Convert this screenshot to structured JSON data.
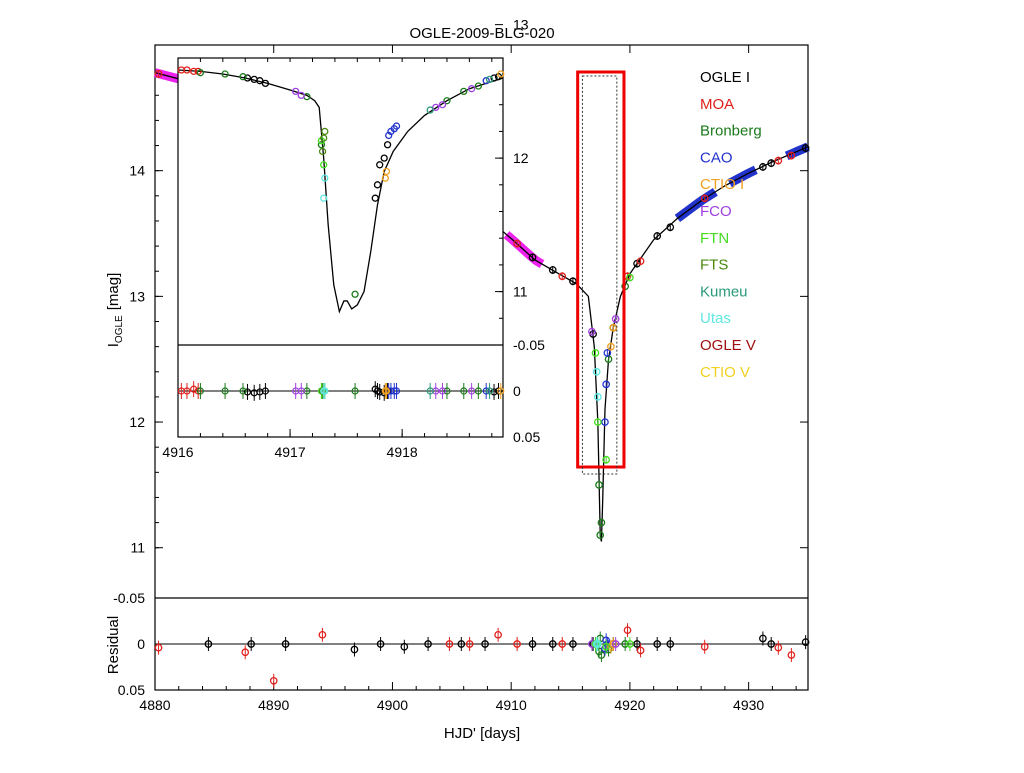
{
  "chart_data": {
    "type": "scatter",
    "title": "OGLE-2009-BLG-020",
    "xlabel": "HJD' [days]",
    "ylabel": "I_OGLE [mag]",
    "ylabel_main": "I",
    "ylabel_sub": "OGLE",
    "ylabel_unit": "[mag]",
    "residual_label": "Residual",
    "x_range": [
      4880,
      4935
    ],
    "y_range": [
      15.0,
      10.6
    ],
    "resid_range": [
      -0.05,
      0.05
    ],
    "x_ticks": [
      "4880",
      "4890",
      "4900",
      "4910",
      "4920",
      "4930"
    ],
    "y_ticks": [
      "11",
      "12",
      "13",
      "14"
    ],
    "resid_ticks": [
      "-0.05",
      "0",
      "0.05"
    ],
    "inset": {
      "x_range": [
        4916.0,
        4918.9
      ],
      "y_range": [
        12.75,
        10.6
      ],
      "x_ticks": [
        "4916",
        "4917",
        "4918"
      ],
      "y_ticks": [
        "11",
        "12",
        "13"
      ],
      "resid_ticks": [
        "-0.05",
        "0",
        "0.05"
      ]
    },
    "legend": [
      {
        "name": "OGLE I",
        "color": "#000000"
      },
      {
        "name": "MOA",
        "color": "#e0201c"
      },
      {
        "name": "Bronberg",
        "color": "#1a7a1a"
      },
      {
        "name": "CAO",
        "color": "#2233cc"
      },
      {
        "name": "CTIO I",
        "color": "#f0a020"
      },
      {
        "name": "FCO",
        "color": "#a040e0"
      },
      {
        "name": "FTN",
        "color": "#44dd22"
      },
      {
        "name": "FTS",
        "color": "#4a8a10"
      },
      {
        "name": "Kumeu",
        "color": "#2a9a7a"
      },
      {
        "name": "Utas",
        "color": "#60e8e0"
      },
      {
        "name": "OGLE V",
        "color": "#a01010"
      },
      {
        "name": "CTIO V",
        "color": "#f0d020"
      }
    ],
    "model_curve": [
      [
        4880,
        14.78
      ],
      [
        4882,
        14.73
      ],
      [
        4884,
        14.68
      ],
      [
        4886,
        14.62
      ],
      [
        4888,
        14.56
      ],
      [
        4890,
        14.5
      ],
      [
        4892,
        14.43
      ],
      [
        4894,
        14.35
      ],
      [
        4896,
        14.28
      ],
      [
        4898,
        14.19
      ],
      [
        4900,
        14.1
      ],
      [
        4902,
        14.0
      ],
      [
        4904,
        13.89
      ],
      [
        4906,
        13.76
      ],
      [
        4908,
        13.62
      ],
      [
        4910,
        13.46
      ],
      [
        4912,
        13.29
      ],
      [
        4914,
        13.18
      ],
      [
        4915.5,
        13.1
      ],
      [
        4916.5,
        13.0
      ],
      [
        4917.0,
        12.6
      ],
      [
        4917.3,
        12.0
      ],
      [
        4917.5,
        11.1
      ],
      [
        4917.6,
        11.05
      ],
      [
        4917.7,
        11.35
      ],
      [
        4917.9,
        12.1
      ],
      [
        4918.2,
        12.5
      ],
      [
        4918.6,
        12.75
      ],
      [
        4919.2,
        13.0
      ],
      [
        4920,
        13.18
      ],
      [
        4922,
        13.45
      ],
      [
        4924,
        13.62
      ],
      [
        4926,
        13.76
      ],
      [
        4928,
        13.88
      ],
      [
        4930,
        13.98
      ],
      [
        4932,
        14.07
      ],
      [
        4935,
        14.19
      ]
    ],
    "inset_model_curve": [
      [
        4916.0,
        12.66
      ],
      [
        4916.2,
        12.65
      ],
      [
        4916.4,
        12.63
      ],
      [
        4916.6,
        12.6
      ],
      [
        4916.8,
        12.56
      ],
      [
        4917.0,
        12.51
      ],
      [
        4917.15,
        12.47
      ],
      [
        4917.22,
        12.43
      ],
      [
        4917.26,
        12.38
      ],
      [
        4917.3,
        12.0
      ],
      [
        4917.34,
        11.5
      ],
      [
        4917.39,
        11.05
      ],
      [
        4917.44,
        10.85
      ],
      [
        4917.48,
        10.93
      ],
      [
        4917.51,
        10.93
      ],
      [
        4917.55,
        10.87
      ],
      [
        4917.6,
        10.9
      ],
      [
        4917.66,
        11.0
      ],
      [
        4917.72,
        11.3
      ],
      [
        4917.78,
        11.65
      ],
      [
        4917.84,
        11.9
      ],
      [
        4917.92,
        12.05
      ],
      [
        4918.05,
        12.2
      ],
      [
        4918.2,
        12.32
      ],
      [
        4918.4,
        12.43
      ],
      [
        4918.6,
        12.52
      ],
      [
        4918.9,
        12.6
      ]
    ],
    "bands": [
      {
        "color": "#ee22ee",
        "x": [
          4880.0,
          4882.0
        ]
      },
      {
        "color": "#ee22ee",
        "x": [
          4882.6,
          4885.8
        ]
      },
      {
        "color": "#ee22ee",
        "x": [
          4886.2,
          4888.6
        ]
      },
      {
        "color": "#ee22ee",
        "x": [
          4888.9,
          4891.6
        ]
      },
      {
        "color": "#ee22ee",
        "x": [
          4892.2,
          4894.8
        ]
      },
      {
        "color": "#ee22ee",
        "x": [
          4895.2,
          4897.8
        ]
      },
      {
        "color": "#ee22ee",
        "x": [
          4898.2,
          4900.2
        ]
      },
      {
        "color": "#ee22ee",
        "x": [
          4902.0,
          4905.0
        ]
      },
      {
        "color": "#ee22ee",
        "x": [
          4905.6,
          4908.4
        ]
      },
      {
        "color": "#ee22ee",
        "x": [
          4909.6,
          4912.6
        ]
      },
      {
        "color": "#2233cc",
        "x": [
          4924.0,
          4927.2
        ]
      },
      {
        "color": "#2233cc",
        "x": [
          4928.4,
          4930.6
        ]
      },
      {
        "color": "#2233cc",
        "x": [
          4933.2,
          4935.0
        ]
      }
    ],
    "series": [
      {
        "name": "OGLE I",
        "color": "#000000",
        "points": [
          [
            4884.5,
            14.71,
            0.0
          ],
          [
            4888.1,
            14.57,
            0.0
          ],
          [
            4891.0,
            14.47,
            0.0
          ],
          [
            4896.8,
            14.24,
            0.006
          ],
          [
            4899.0,
            14.16,
            0.0
          ],
          [
            4901.0,
            14.06,
            0.003
          ],
          [
            4903.0,
            13.95,
            0.0
          ],
          [
            4905.8,
            13.77,
            0.0
          ],
          [
            4907.8,
            13.64,
            0.0
          ],
          [
            4911.8,
            13.31,
            0.0
          ],
          [
            4913.5,
            13.21,
            0.0
          ],
          [
            4915.2,
            13.12,
            0.0
          ],
          [
            4916.9,
            12.7,
            0.0
          ],
          [
            4918.6,
            12.75,
            0.0
          ],
          [
            4920.6,
            13.26,
            0.0
          ],
          [
            4922.3,
            13.48,
            0.0
          ],
          [
            4923.4,
            13.55,
            0.0
          ],
          [
            4931.2,
            14.03,
            -0.006
          ],
          [
            4931.9,
            14.06,
            0.0
          ],
          [
            4934.8,
            14.18,
            -0.002
          ]
        ]
      },
      {
        "name": "MOA",
        "color": "#e0201c",
        "points": [
          [
            4880.3,
            14.77,
            0.004
          ],
          [
            4887.6,
            14.59,
            0.009
          ],
          [
            4890.0,
            14.51,
            0.04
          ],
          [
            4894.1,
            14.35,
            -0.01
          ],
          [
            4904.8,
            13.85,
            0.0
          ],
          [
            4906.5,
            13.74,
            0.0
          ],
          [
            4908.9,
            13.55,
            -0.01
          ],
          [
            4910.5,
            13.42,
            0.0
          ],
          [
            4914.3,
            13.16,
            0.0
          ],
          [
            4919.8,
            13.16,
            -0.015
          ],
          [
            4920.9,
            13.28,
            0.007
          ],
          [
            4926.3,
            13.78,
            0.003
          ],
          [
            4932.5,
            14.08,
            0.004
          ],
          [
            4933.6,
            14.12,
            0.012
          ]
        ]
      },
      {
        "name": "Bronberg",
        "color": "#1a7a1a",
        "points": [
          [
            4917.4,
            11.5,
            0.008
          ],
          [
            4917.5,
            11.1,
            -0.006
          ],
          [
            4917.6,
            11.2,
            0.012
          ],
          [
            4918.2,
            12.5,
            0.006
          ],
          [
            4919.6,
            13.08,
            0.0
          ]
        ]
      },
      {
        "name": "CAO",
        "color": "#2233cc",
        "points": [
          [
            4917.9,
            12.0,
            0.005
          ],
          [
            4918.0,
            12.3,
            -0.004
          ],
          [
            4918.1,
            12.55,
            0.0
          ]
        ]
      },
      {
        "name": "CTIO I",
        "color": "#f0a020",
        "points": [
          [
            4918.4,
            12.6,
            0.003
          ],
          [
            4918.6,
            12.75,
            0.0
          ]
        ]
      },
      {
        "name": "FCO",
        "color": "#a040e0",
        "points": [
          [
            4916.8,
            12.72,
            0.0
          ],
          [
            4918.8,
            12.82,
            0.0
          ]
        ]
      },
      {
        "name": "FTN",
        "color": "#44dd22",
        "points": [
          [
            4917.1,
            12.55,
            0.0
          ],
          [
            4917.3,
            12.0,
            0.0
          ],
          [
            4918.0,
            11.7,
            0.003
          ],
          [
            4920.0,
            13.15,
            0.0
          ]
        ]
      },
      {
        "name": "Utas",
        "color": "#60e8e0",
        "points": [
          [
            4917.2,
            12.4,
            0.0
          ],
          [
            4917.3,
            12.2,
            0.0
          ]
        ]
      }
    ],
    "inset_series": [
      {
        "name": "OGLE I",
        "color": "#000000",
        "points": [
          [
            4916.62,
            12.6,
            0.001
          ],
          [
            4916.68,
            12.59,
            0.002
          ],
          [
            4916.73,
            12.58,
            0.001
          ],
          [
            4916.78,
            12.56,
            0.0
          ],
          [
            4917.76,
            11.7,
            -0.002
          ],
          [
            4917.78,
            11.8,
            0.0
          ],
          [
            4917.8,
            11.95,
            0.001
          ],
          [
            4917.84,
            12.0,
            0.002
          ],
          [
            4917.87,
            12.1,
            0.0
          ],
          [
            4918.82,
            12.6,
            0.001
          ],
          [
            4918.86,
            12.61,
            0.0
          ]
        ]
      },
      {
        "name": "MOA",
        "color": "#e0201c",
        "points": [
          [
            4916.03,
            12.66,
            0.0
          ],
          [
            4916.08,
            12.66,
            0.0
          ],
          [
            4916.14,
            12.65,
            -0.002
          ],
          [
            4916.18,
            12.65,
            0.0
          ]
        ]
      },
      {
        "name": "Bronberg",
        "color": "#1a7a1a",
        "points": [
          [
            4916.2,
            12.64,
            0.0
          ],
          [
            4916.42,
            12.63,
            0.0
          ],
          [
            4916.58,
            12.61,
            0.0
          ],
          [
            4917.15,
            12.46,
            0.0
          ],
          [
            4917.28,
            12.1,
            0.0
          ],
          [
            4917.58,
            10.98,
            0.0
          ],
          [
            4918.4,
            12.43,
            0.0
          ],
          [
            4918.55,
            12.5,
            0.0
          ],
          [
            4918.68,
            12.54,
            0.0
          ]
        ]
      },
      {
        "name": "CAO",
        "color": "#2233cc",
        "points": [
          [
            4917.88,
            12.17,
            0.0
          ],
          [
            4917.9,
            12.2,
            0.0
          ],
          [
            4917.93,
            12.22,
            0.0
          ],
          [
            4917.95,
            12.24,
            0.0
          ],
          [
            4918.75,
            12.58,
            0.0
          ]
        ]
      },
      {
        "name": "CTIO I",
        "color": "#f0a020",
        "points": [
          [
            4917.85,
            11.85,
            0.0
          ],
          [
            4917.86,
            11.9,
            0.0
          ],
          [
            4918.88,
            12.63,
            0.0
          ]
        ]
      },
      {
        "name": "FCO",
        "color": "#a040e0",
        "points": [
          [
            4917.05,
            12.5,
            0.0
          ],
          [
            4917.1,
            12.47,
            0.0
          ],
          [
            4918.3,
            12.38,
            0.0
          ],
          [
            4918.36,
            12.4,
            0.0
          ],
          [
            4918.62,
            12.52,
            0.0
          ]
        ]
      },
      {
        "name": "FTN",
        "color": "#44dd22",
        "points": [
          [
            4917.28,
            12.13,
            0.0
          ],
          [
            4917.3,
            11.95,
            0.0
          ]
        ]
      },
      {
        "name": "FTS",
        "color": "#4a8a10",
        "points": [
          [
            4917.29,
            12.05,
            0.0
          ],
          [
            4917.3,
            12.15,
            0.0
          ],
          [
            4917.31,
            12.2,
            0.0
          ]
        ]
      },
      {
        "name": "Kumeu",
        "color": "#2a9a7a",
        "points": [
          [
            4918.25,
            12.36,
            0.0
          ],
          [
            4918.78,
            12.59,
            0.0
          ]
        ]
      },
      {
        "name": "Utas",
        "color": "#60e8e0",
        "points": [
          [
            4917.3,
            11.7,
            0.0
          ],
          [
            4917.31,
            11.85,
            0.0
          ]
        ]
      }
    ]
  }
}
